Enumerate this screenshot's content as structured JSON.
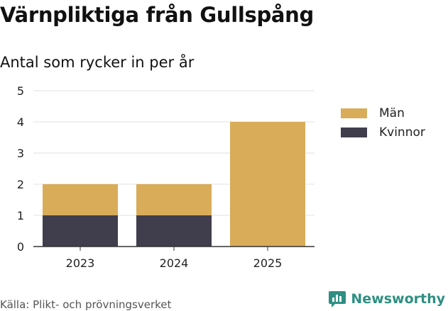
{
  "title": "Värnpliktiga från Gullspång",
  "subtitle": "Antal som rycker in per år",
  "source": "Källa: Plikt- och prövningsverket",
  "brand": {
    "name": "Newsworthy",
    "icon": "newsworthy-logo-icon",
    "color": "#2e8f82"
  },
  "chart_data": {
    "type": "bar",
    "stacked": true,
    "categories": [
      "2023",
      "2024",
      "2025"
    ],
    "series": [
      {
        "name": "Kvinnor",
        "values": [
          1,
          1,
          0
        ],
        "color": "#403d4c"
      },
      {
        "name": "Män",
        "values": [
          1,
          1,
          4
        ],
        "color": "#d9ac59"
      }
    ],
    "legend": [
      {
        "name": "Män",
        "color": "#d9ac59"
      },
      {
        "name": "Kvinnor",
        "color": "#403d4c"
      }
    ],
    "legend_position": "right",
    "ylim": [
      0,
      5
    ],
    "yticks": [
      0,
      1,
      2,
      3,
      4,
      5
    ],
    "grid": true,
    "xlabel": "",
    "ylabel": ""
  }
}
